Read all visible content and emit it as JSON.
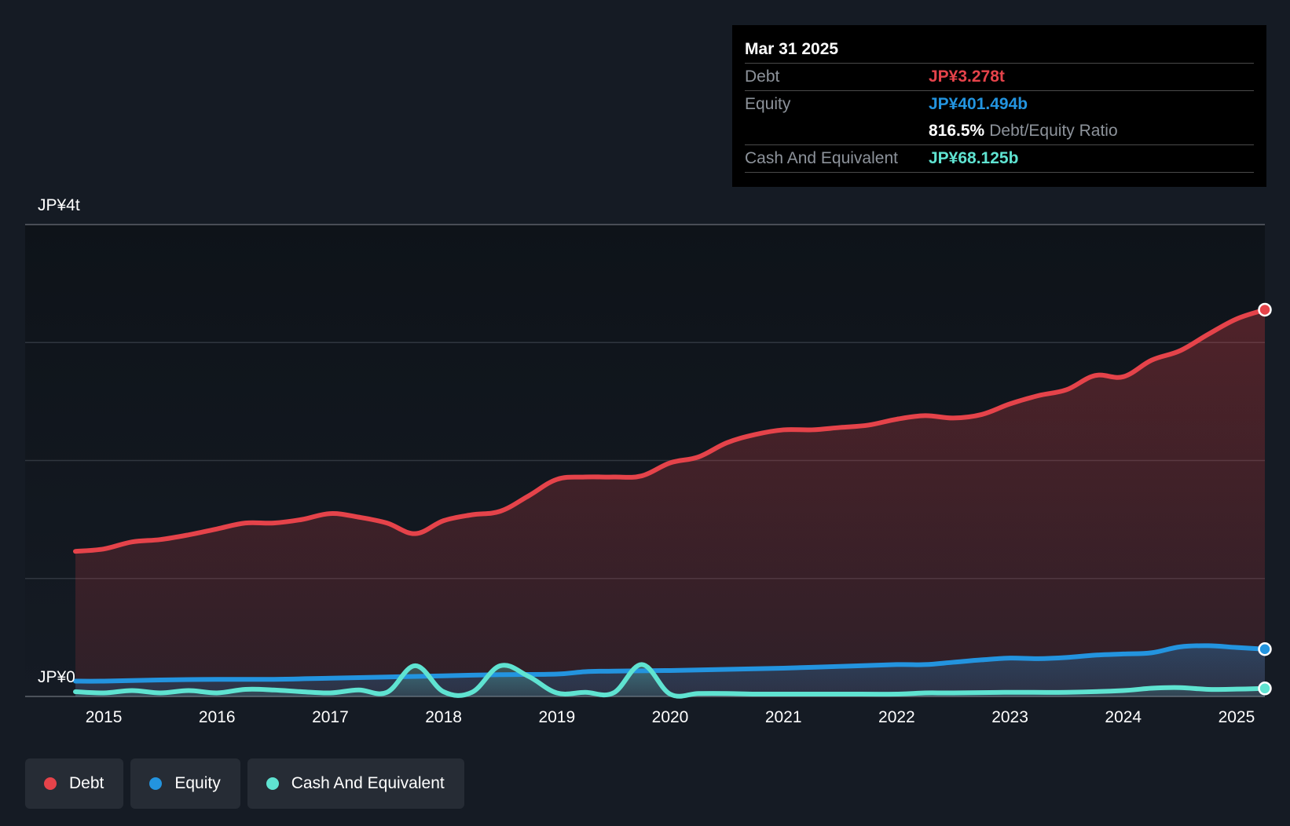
{
  "tooltip": {
    "date": "Mar 31 2025",
    "debt_label": "Debt",
    "debt_value": "JP¥3.278t",
    "equity_label": "Equity",
    "equity_value": "JP¥401.494b",
    "ratio_value": "816.5%",
    "ratio_label": "Debt/Equity Ratio",
    "cash_label": "Cash And Equivalent",
    "cash_value": "JP¥68.125b"
  },
  "legend": [
    {
      "label": "Debt",
      "color": "#e5434a"
    },
    {
      "label": "Equity",
      "color": "#2394df"
    },
    {
      "label": "Cash And Equivalent",
      "color": "#5fe3d1"
    }
  ],
  "chart_data": {
    "type": "area",
    "units": "JP¥ trillions",
    "y_axis_labels": {
      "top": "JP¥4t",
      "bottom": "JP¥0"
    },
    "ylim": [
      0,
      4
    ],
    "xlim": [
      2014.7,
      2025.25
    ],
    "x_ticks": [
      "2015",
      "2016",
      "2017",
      "2018",
      "2019",
      "2020",
      "2021",
      "2022",
      "2023",
      "2024",
      "2025"
    ],
    "x_tick_values": [
      2015,
      2016,
      2017,
      2018,
      2019,
      2020,
      2021,
      2022,
      2023,
      2024,
      2025
    ],
    "grid": true,
    "legend_position": "bottom-left",
    "series": [
      {
        "name": "Debt",
        "color": "#e5434a",
        "points": [
          [
            2014.75,
            1.23
          ],
          [
            2015.0,
            1.25
          ],
          [
            2015.25,
            1.31
          ],
          [
            2015.5,
            1.33
          ],
          [
            2015.75,
            1.37
          ],
          [
            2016.0,
            1.42
          ],
          [
            2016.25,
            1.47
          ],
          [
            2016.5,
            1.47
          ],
          [
            2016.75,
            1.5
          ],
          [
            2017.0,
            1.55
          ],
          [
            2017.25,
            1.52
          ],
          [
            2017.5,
            1.47
          ],
          [
            2017.75,
            1.38
          ],
          [
            2018.0,
            1.49
          ],
          [
            2018.25,
            1.54
          ],
          [
            2018.5,
            1.57
          ],
          [
            2018.75,
            1.7
          ],
          [
            2019.0,
            1.84
          ],
          [
            2019.25,
            1.86
          ],
          [
            2019.5,
            1.86
          ],
          [
            2019.75,
            1.87
          ],
          [
            2020.0,
            1.98
          ],
          [
            2020.25,
            2.03
          ],
          [
            2020.5,
            2.15
          ],
          [
            2020.75,
            2.22
          ],
          [
            2021.0,
            2.26
          ],
          [
            2021.25,
            2.26
          ],
          [
            2021.5,
            2.28
          ],
          [
            2021.75,
            2.3
          ],
          [
            2022.0,
            2.35
          ],
          [
            2022.25,
            2.38
          ],
          [
            2022.5,
            2.36
          ],
          [
            2022.75,
            2.39
          ],
          [
            2023.0,
            2.48
          ],
          [
            2023.25,
            2.55
          ],
          [
            2023.5,
            2.6
          ],
          [
            2023.75,
            2.72
          ],
          [
            2024.0,
            2.71
          ],
          [
            2024.25,
            2.85
          ],
          [
            2024.5,
            2.93
          ],
          [
            2024.75,
            3.07
          ],
          [
            2025.0,
            3.2
          ],
          [
            2025.25,
            3.278
          ]
        ]
      },
      {
        "name": "Equity",
        "color": "#2394df",
        "points": [
          [
            2014.75,
            0.13
          ],
          [
            2015.0,
            0.13
          ],
          [
            2015.5,
            0.14
          ],
          [
            2016.0,
            0.145
          ],
          [
            2016.5,
            0.145
          ],
          [
            2017.0,
            0.155
          ],
          [
            2017.5,
            0.165
          ],
          [
            2018.0,
            0.175
          ],
          [
            2018.5,
            0.185
          ],
          [
            2019.0,
            0.19
          ],
          [
            2019.25,
            0.21
          ],
          [
            2019.5,
            0.215
          ],
          [
            2020.0,
            0.22
          ],
          [
            2020.5,
            0.23
          ],
          [
            2021.0,
            0.24
          ],
          [
            2021.5,
            0.255
          ],
          [
            2022.0,
            0.27
          ],
          [
            2022.25,
            0.27
          ],
          [
            2022.5,
            0.29
          ],
          [
            2022.75,
            0.31
          ],
          [
            2023.0,
            0.325
          ],
          [
            2023.25,
            0.32
          ],
          [
            2023.5,
            0.33
          ],
          [
            2023.75,
            0.35
          ],
          [
            2024.0,
            0.36
          ],
          [
            2024.25,
            0.37
          ],
          [
            2024.5,
            0.42
          ],
          [
            2024.75,
            0.43
          ],
          [
            2025.0,
            0.415
          ],
          [
            2025.25,
            0.401
          ]
        ]
      },
      {
        "name": "Cash And Equivalent",
        "color": "#5fe3d1",
        "points": [
          [
            2014.75,
            0.04
          ],
          [
            2015.0,
            0.03
          ],
          [
            2015.25,
            0.05
          ],
          [
            2015.5,
            0.03
          ],
          [
            2015.75,
            0.05
          ],
          [
            2016.0,
            0.03
          ],
          [
            2016.25,
            0.06
          ],
          [
            2016.5,
            0.055
          ],
          [
            2016.75,
            0.04
          ],
          [
            2017.0,
            0.03
          ],
          [
            2017.25,
            0.055
          ],
          [
            2017.5,
            0.035
          ],
          [
            2017.75,
            0.26
          ],
          [
            2018.0,
            0.04
          ],
          [
            2018.25,
            0.035
          ],
          [
            2018.5,
            0.26
          ],
          [
            2018.75,
            0.17
          ],
          [
            2019.0,
            0.03
          ],
          [
            2019.25,
            0.035
          ],
          [
            2019.5,
            0.03
          ],
          [
            2019.75,
            0.27
          ],
          [
            2020.0,
            0.02
          ],
          [
            2020.25,
            0.025
          ],
          [
            2020.5,
            0.025
          ],
          [
            2020.75,
            0.02
          ],
          [
            2021.0,
            0.02
          ],
          [
            2021.5,
            0.02
          ],
          [
            2022.0,
            0.02
          ],
          [
            2022.25,
            0.03
          ],
          [
            2022.5,
            0.03
          ],
          [
            2023.0,
            0.035
          ],
          [
            2023.5,
            0.035
          ],
          [
            2024.0,
            0.05
          ],
          [
            2024.25,
            0.07
          ],
          [
            2024.5,
            0.075
          ],
          [
            2024.75,
            0.06
          ],
          [
            2025.0,
            0.062
          ],
          [
            2025.25,
            0.068
          ]
        ]
      }
    ]
  }
}
